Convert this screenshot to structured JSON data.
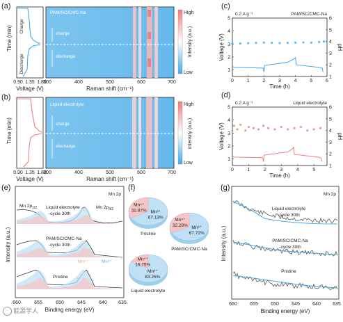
{
  "watermark": "能源学人",
  "panels": {
    "a": {
      "label": "(a)",
      "sample": "PAM/SC/CMC-Na",
      "charge": "charge",
      "discharge": "discharge",
      "side_charge": "Charge",
      "side_discharge": "Discharge",
      "ylabel": "Time (min)",
      "side_xlabel": "Voltage (V)",
      "side_xticks": [
        "0.90",
        "1.35",
        "1.80"
      ],
      "xlabel": "Raman shift (cm⁻¹)",
      "xticks": [
        "300",
        "400",
        "500",
        "600",
        "700"
      ],
      "cbar_label": "Intensity (a.u.)",
      "cbar_high": "High",
      "cbar_low": "Low"
    },
    "b": {
      "label": "(b)",
      "sample": "Liquid electrolyte",
      "charge": "charge",
      "discharge": "discharge",
      "ylabel": "Time (min)",
      "side_xlabel": "Voltage (V)",
      "side_xticks": [
        "0.90",
        "1.35",
        "1.80"
      ],
      "xlabel": "Raman shift (cm⁻¹)",
      "xticks": [
        "300",
        "400",
        "500",
        "600",
        "700"
      ],
      "cbar_label": "Intensity (a.u.)",
      "cbar_high": "High",
      "cbar_low": "Low"
    },
    "c": {
      "label": "(c)",
      "current": "0.2 A g⁻¹",
      "sample": "PAM/SC/CMC-Na"
    },
    "d": {
      "label": "(d)",
      "current": "0.2 A g⁻¹",
      "sample": "Liquid electrolyte"
    },
    "e": {
      "label": "(e)",
      "tag": "Mn 2p",
      "xlabel": "Binding energy (eV)",
      "ylabel": "Intensity (a.u.)",
      "xticks": [
        "660",
        "655",
        "650",
        "645",
        "640",
        "635"
      ],
      "peak1": "Mn 2p",
      "peak1_sub": "1/2",
      "peak2": "Mn 2p",
      "peak2_sub": "3/2",
      "curve1_a": "Liquid electrolyte",
      "curve1_b": "-cycle 30th",
      "curve2_a": "PAM/SC/CMC-Na",
      "curve2_b": "-cycle 30th",
      "curve3": "Pristine",
      "mn4": "Mn⁴⁺",
      "mn3": "Mn³⁺",
      "colors": {
        "mn4": "#f0a0a0",
        "mn3": "#5aaee0"
      }
    },
    "f": {
      "label": "(f)",
      "pies": [
        {
          "name": "Pristine",
          "mn4": "Mn⁴⁺",
          "mn4_pct": "32.87%",
          "mn3": "Mn³⁺",
          "mn3_pct": "67.13%",
          "mn4_value": 32.87
        },
        {
          "name": "PAM/SC/CMC-Na",
          "mn4": "Mn⁴⁺",
          "mn4_pct": "32.28%",
          "mn3": "Mn³⁺",
          "mn3_pct": "67.72%",
          "mn4_value": 32.28
        },
        {
          "name": "Liquid electrolyte",
          "mn4": "Mn⁴⁺",
          "mn4_pct": "16.75%",
          "mn3": "Mn³⁺",
          "mn3_pct": "83.25%",
          "mn4_value": 16.75
        }
      ]
    },
    "g": {
      "label": "(g)",
      "tag": "Mn 2p",
      "xlabel": "Binding energy (eV)",
      "ylabel": "Intensity (a.u.)",
      "xticks": [
        "660",
        "655",
        "650",
        "645",
        "640",
        "635"
      ],
      "curve1_a": "Liquid electrolyte",
      "curve1_b": "-cycle 30th",
      "curve2_a": "PAM/SC/CMC-Na",
      "curve2_b": "-cycle 30th",
      "curve3": "Pristine"
    }
  },
  "chart_data": [
    {
      "type": "line",
      "panel": "c",
      "xlabel": "Time (h)",
      "ylabel": "Voltage (V)",
      "y2label": "pH",
      "xlim": [
        0,
        6
      ],
      "ylim": [
        0.5,
        5
      ],
      "y2lim": [
        1,
        6
      ],
      "xticks": [
        0,
        1,
        2,
        3,
        4,
        5,
        6
      ],
      "yticks": [
        1,
        2,
        3,
        4,
        5
      ],
      "y2ticks": [
        1,
        2,
        3,
        4,
        5,
        6
      ],
      "series": [
        {
          "axis": "y2",
          "x": [
            0,
            0.5,
            1,
            1.5,
            2,
            2.5,
            3,
            3.5,
            4,
            4.5,
            5,
            5.5,
            5.8
          ],
          "y": [
            3.8,
            3.82,
            3.85,
            3.88,
            3.9,
            3.88,
            3.86,
            3.88,
            3.9,
            3.92,
            3.9,
            3.95,
            4.0
          ]
        },
        {
          "axis": "y",
          "x": [
            0,
            0.1,
            1.95,
            2.0,
            2.05,
            3.5,
            3.9,
            4.0,
            4.05,
            5.5,
            5.7,
            5.75
          ],
          "y": [
            1.3,
            1.2,
            1.15,
            0.85,
            1.35,
            1.6,
            1.85,
            1.95,
            1.4,
            1.2,
            1.15,
            0.85
          ]
        }
      ]
    },
    {
      "type": "line",
      "panel": "d",
      "xlabel": "Time (h)",
      "ylabel": "Voltage (V)",
      "y2label": "pH",
      "xlim": [
        0,
        5.8
      ],
      "ylim": [
        0.5,
        5
      ],
      "y2lim": [
        1,
        6
      ],
      "xticks": [
        0,
        1,
        2,
        3,
        4,
        5
      ],
      "yticks": [
        1,
        2,
        3,
        4,
        5
      ],
      "y2ticks": [
        1,
        2,
        3,
        4,
        5,
        6
      ],
      "series": [
        {
          "axis": "y2",
          "x": [
            0.1,
            0.3,
            0.5,
            0.8,
            1,
            1.3,
            1.6,
            1.9,
            2.2,
            2.6,
            3,
            3.4,
            3.8,
            4.2,
            4.6,
            5,
            5.4
          ],
          "y": [
            4.4,
            4.1,
            4.5,
            4.0,
            4.3,
            4.2,
            4.1,
            4.4,
            4.2,
            4.1,
            4.3,
            4.1,
            4.2,
            4.3,
            4.0,
            4.1,
            4.2
          ]
        },
        {
          "axis": "y",
          "x": [
            0,
            0.1,
            1.85,
            1.9,
            1.95,
            3.4,
            3.7,
            3.75,
            3.8,
            5.3,
            5.45,
            5.5
          ],
          "y": [
            1.3,
            1.15,
            1.1,
            0.8,
            1.3,
            1.55,
            1.8,
            1.95,
            1.35,
            1.15,
            1.05,
            0.8
          ]
        }
      ]
    },
    {
      "type": "pie",
      "panel": "f",
      "pies": [
        {
          "name": "Pristine",
          "labels": [
            "Mn4+",
            "Mn3+"
          ],
          "values": [
            32.87,
            67.13
          ]
        },
        {
          "name": "PAM/SC/CMC-Na",
          "labels": [
            "Mn4+",
            "Mn3+"
          ],
          "values": [
            32.28,
            67.72
          ]
        },
        {
          "name": "Liquid electrolyte",
          "labels": [
            "Mn4+",
            "Mn3+"
          ],
          "values": [
            16.75,
            83.25
          ]
        }
      ]
    }
  ]
}
